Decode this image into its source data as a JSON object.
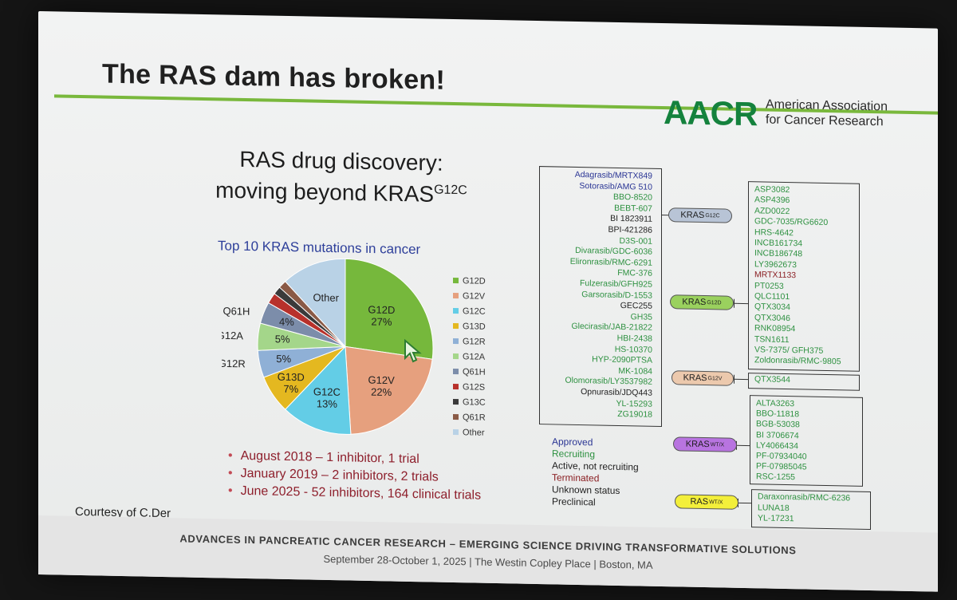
{
  "slide": {
    "title": "The RAS dam has broken!",
    "logo_mark": "AACR",
    "logo_text_1": "American Association",
    "logo_text_2": "for Cancer Research",
    "heading_line1": "RAS drug discovery:",
    "heading_line2": "moving beyond KRAS",
    "heading_sup": "G12C",
    "courtesy": "Courtesy of C.Der",
    "bullets": [
      "August 2018 – 1 inhibitor, 1 trial",
      "January 2019 – 2 inhibitors, 2 trials",
      "June 2025 - 52 inhibitors, 164 clinical trials"
    ]
  },
  "chart_data": {
    "type": "pie",
    "title": "Top 10 KRAS mutations in cancer",
    "categories": [
      "G12D",
      "G12V",
      "G12C",
      "G13D",
      "G12R",
      "G12A",
      "Q61H",
      "G12S",
      "G13C",
      "Q61R",
      "Other"
    ],
    "values": [
      27,
      22,
      13,
      7,
      5,
      5,
      4,
      2,
      1.5,
      1.5,
      12
    ],
    "slice_labels": [
      {
        "name": "G12D",
        "pct": "27%"
      },
      {
        "name": "G12V",
        "pct": "22%"
      },
      {
        "name": "G12C",
        "pct": "13%"
      },
      {
        "name": "G13D",
        "pct": "7%"
      },
      {
        "name": "G12R",
        "pct": "5%"
      },
      {
        "name": "G12A",
        "pct": "5%"
      },
      {
        "name": "Q61H",
        "pct": "4%"
      },
      {
        "name": "Other",
        "pct": ""
      }
    ],
    "colors": [
      "#76b83c",
      "#e6a07e",
      "#63cde6",
      "#e4b820",
      "#8fb0d6",
      "#a4d68a",
      "#7c8daa",
      "#b8312b",
      "#3a3a3a",
      "#8a5a46",
      "#b9d2e6"
    ],
    "legend_position": "right"
  },
  "targets": {
    "kras_g12c": {
      "label": "KRAS",
      "sup": "G12C",
      "color": "#b8c4d6"
    },
    "kras_g12d": {
      "label": "KRAS",
      "sup": "G12D",
      "color": "#9ad15e"
    },
    "kras_g12v": {
      "label": "KRAS",
      "sup": "G12V",
      "color": "#ecc9ad"
    },
    "kras_wtx": {
      "label": "KRAS",
      "sup": "WT/X",
      "color": "#b874e0"
    },
    "ras_wtx": {
      "label": "RAS",
      "sup": "WT/X",
      "color": "#f3ef3a"
    }
  },
  "left_drugs": [
    {
      "name": "Adagrasib/MRTX849",
      "status": "approved"
    },
    {
      "name": "Sotorasib/AMG 510",
      "status": "approved"
    },
    {
      "name": "BBO-8520",
      "status": "recruiting"
    },
    {
      "name": "BEBT-607",
      "status": "recruiting"
    },
    {
      "name": "BI 1823911",
      "status": "active"
    },
    {
      "name": "BPI-421286",
      "status": "active"
    },
    {
      "name": "D3S-001",
      "status": "recruiting"
    },
    {
      "name": "Divarasib/GDC-6036",
      "status": "recruiting"
    },
    {
      "name": "Elironrasib/RMC-6291",
      "status": "recruiting"
    },
    {
      "name": "FMC-376",
      "status": "recruiting"
    },
    {
      "name": "Fulzerasib/GFH925",
      "status": "recruiting"
    },
    {
      "name": "Garsorasib/D-1553",
      "status": "recruiting"
    },
    {
      "name": "GEC255",
      "status": "active"
    },
    {
      "name": "GH35",
      "status": "recruiting"
    },
    {
      "name": "Glecirasib/JAB-21822",
      "status": "recruiting"
    },
    {
      "name": "HBI-2438",
      "status": "recruiting"
    },
    {
      "name": "HS-10370",
      "status": "recruiting"
    },
    {
      "name": "HYP-2090PTSA",
      "status": "recruiting"
    },
    {
      "name": "MK-1084",
      "status": "recruiting"
    },
    {
      "name": "Olomorasib/LY3537982",
      "status": "recruiting"
    },
    {
      "name": "Opnurasib/JDQ443",
      "status": "active"
    },
    {
      "name": "YL-15293",
      "status": "recruiting"
    },
    {
      "name": "ZG19018",
      "status": "recruiting"
    }
  ],
  "g12d_drugs": [
    {
      "name": "ASP3082",
      "status": "recruiting"
    },
    {
      "name": "ASP4396",
      "status": "recruiting"
    },
    {
      "name": "AZD0022",
      "status": "recruiting"
    },
    {
      "name": "GDC-7035/RG6620",
      "status": "recruiting"
    },
    {
      "name": "HRS-4642",
      "status": "recruiting"
    },
    {
      "name": "INCB161734",
      "status": "recruiting"
    },
    {
      "name": "INCB186748",
      "status": "recruiting"
    },
    {
      "name": "LY3962673",
      "status": "recruiting"
    },
    {
      "name": "MRTX1133",
      "status": "terminated"
    },
    {
      "name": "PT0253",
      "status": "recruiting"
    },
    {
      "name": "QLC1101",
      "status": "recruiting"
    },
    {
      "name": "QTX3034",
      "status": "recruiting"
    },
    {
      "name": "QTX3046",
      "status": "recruiting"
    },
    {
      "name": "RNK08954",
      "status": "recruiting"
    },
    {
      "name": "TSN1611",
      "status": "recruiting"
    },
    {
      "name": "VS-7375/ GFH375",
      "status": "recruiting"
    },
    {
      "name": "Zoldonrasib/RMC-9805",
      "status": "recruiting"
    }
  ],
  "g12v_drugs": [
    {
      "name": "QTX3544",
      "status": "recruiting"
    }
  ],
  "wtx_drugs": [
    {
      "name": "ALTA3263",
      "status": "recruiting"
    },
    {
      "name": "BBO-11818",
      "status": "recruiting"
    },
    {
      "name": "BGB-53038",
      "status": "recruiting"
    },
    {
      "name": "BI 3706674",
      "status": "recruiting"
    },
    {
      "name": "LY4066434",
      "status": "recruiting"
    },
    {
      "name": "PF-07934040",
      "status": "recruiting"
    },
    {
      "name": "PF-07985045",
      "status": "recruiting"
    },
    {
      "name": "RSC-1255",
      "status": "recruiting"
    }
  ],
  "ras_drugs": [
    {
      "name": "Daraxonrasib/RMC-6236",
      "status": "recruiting"
    },
    {
      "name": "LUNA18",
      "status": "recruiting"
    },
    {
      "name": "YL-17231",
      "status": "recruiting"
    }
  ],
  "status_legend": [
    {
      "label": "Approved",
      "status": "approved"
    },
    {
      "label": "Recruiting",
      "status": "recruiting"
    },
    {
      "label": "Active, not recruiting",
      "status": "active"
    },
    {
      "label": "Terminated",
      "status": "terminated"
    },
    {
      "label": "Unknown status",
      "status": "unknown"
    },
    {
      "label": "Preclinical",
      "status": "preclinical"
    }
  ],
  "footer": {
    "line1": "ADVANCES IN PANCREATIC CANCER RESEARCH – EMERGING SCIENCE DRIVING TRANSFORMATIVE SOLUTIONS",
    "line2": "September 28-October 1, 2025  |  The Westin Copley Place  |  Boston, MA"
  }
}
